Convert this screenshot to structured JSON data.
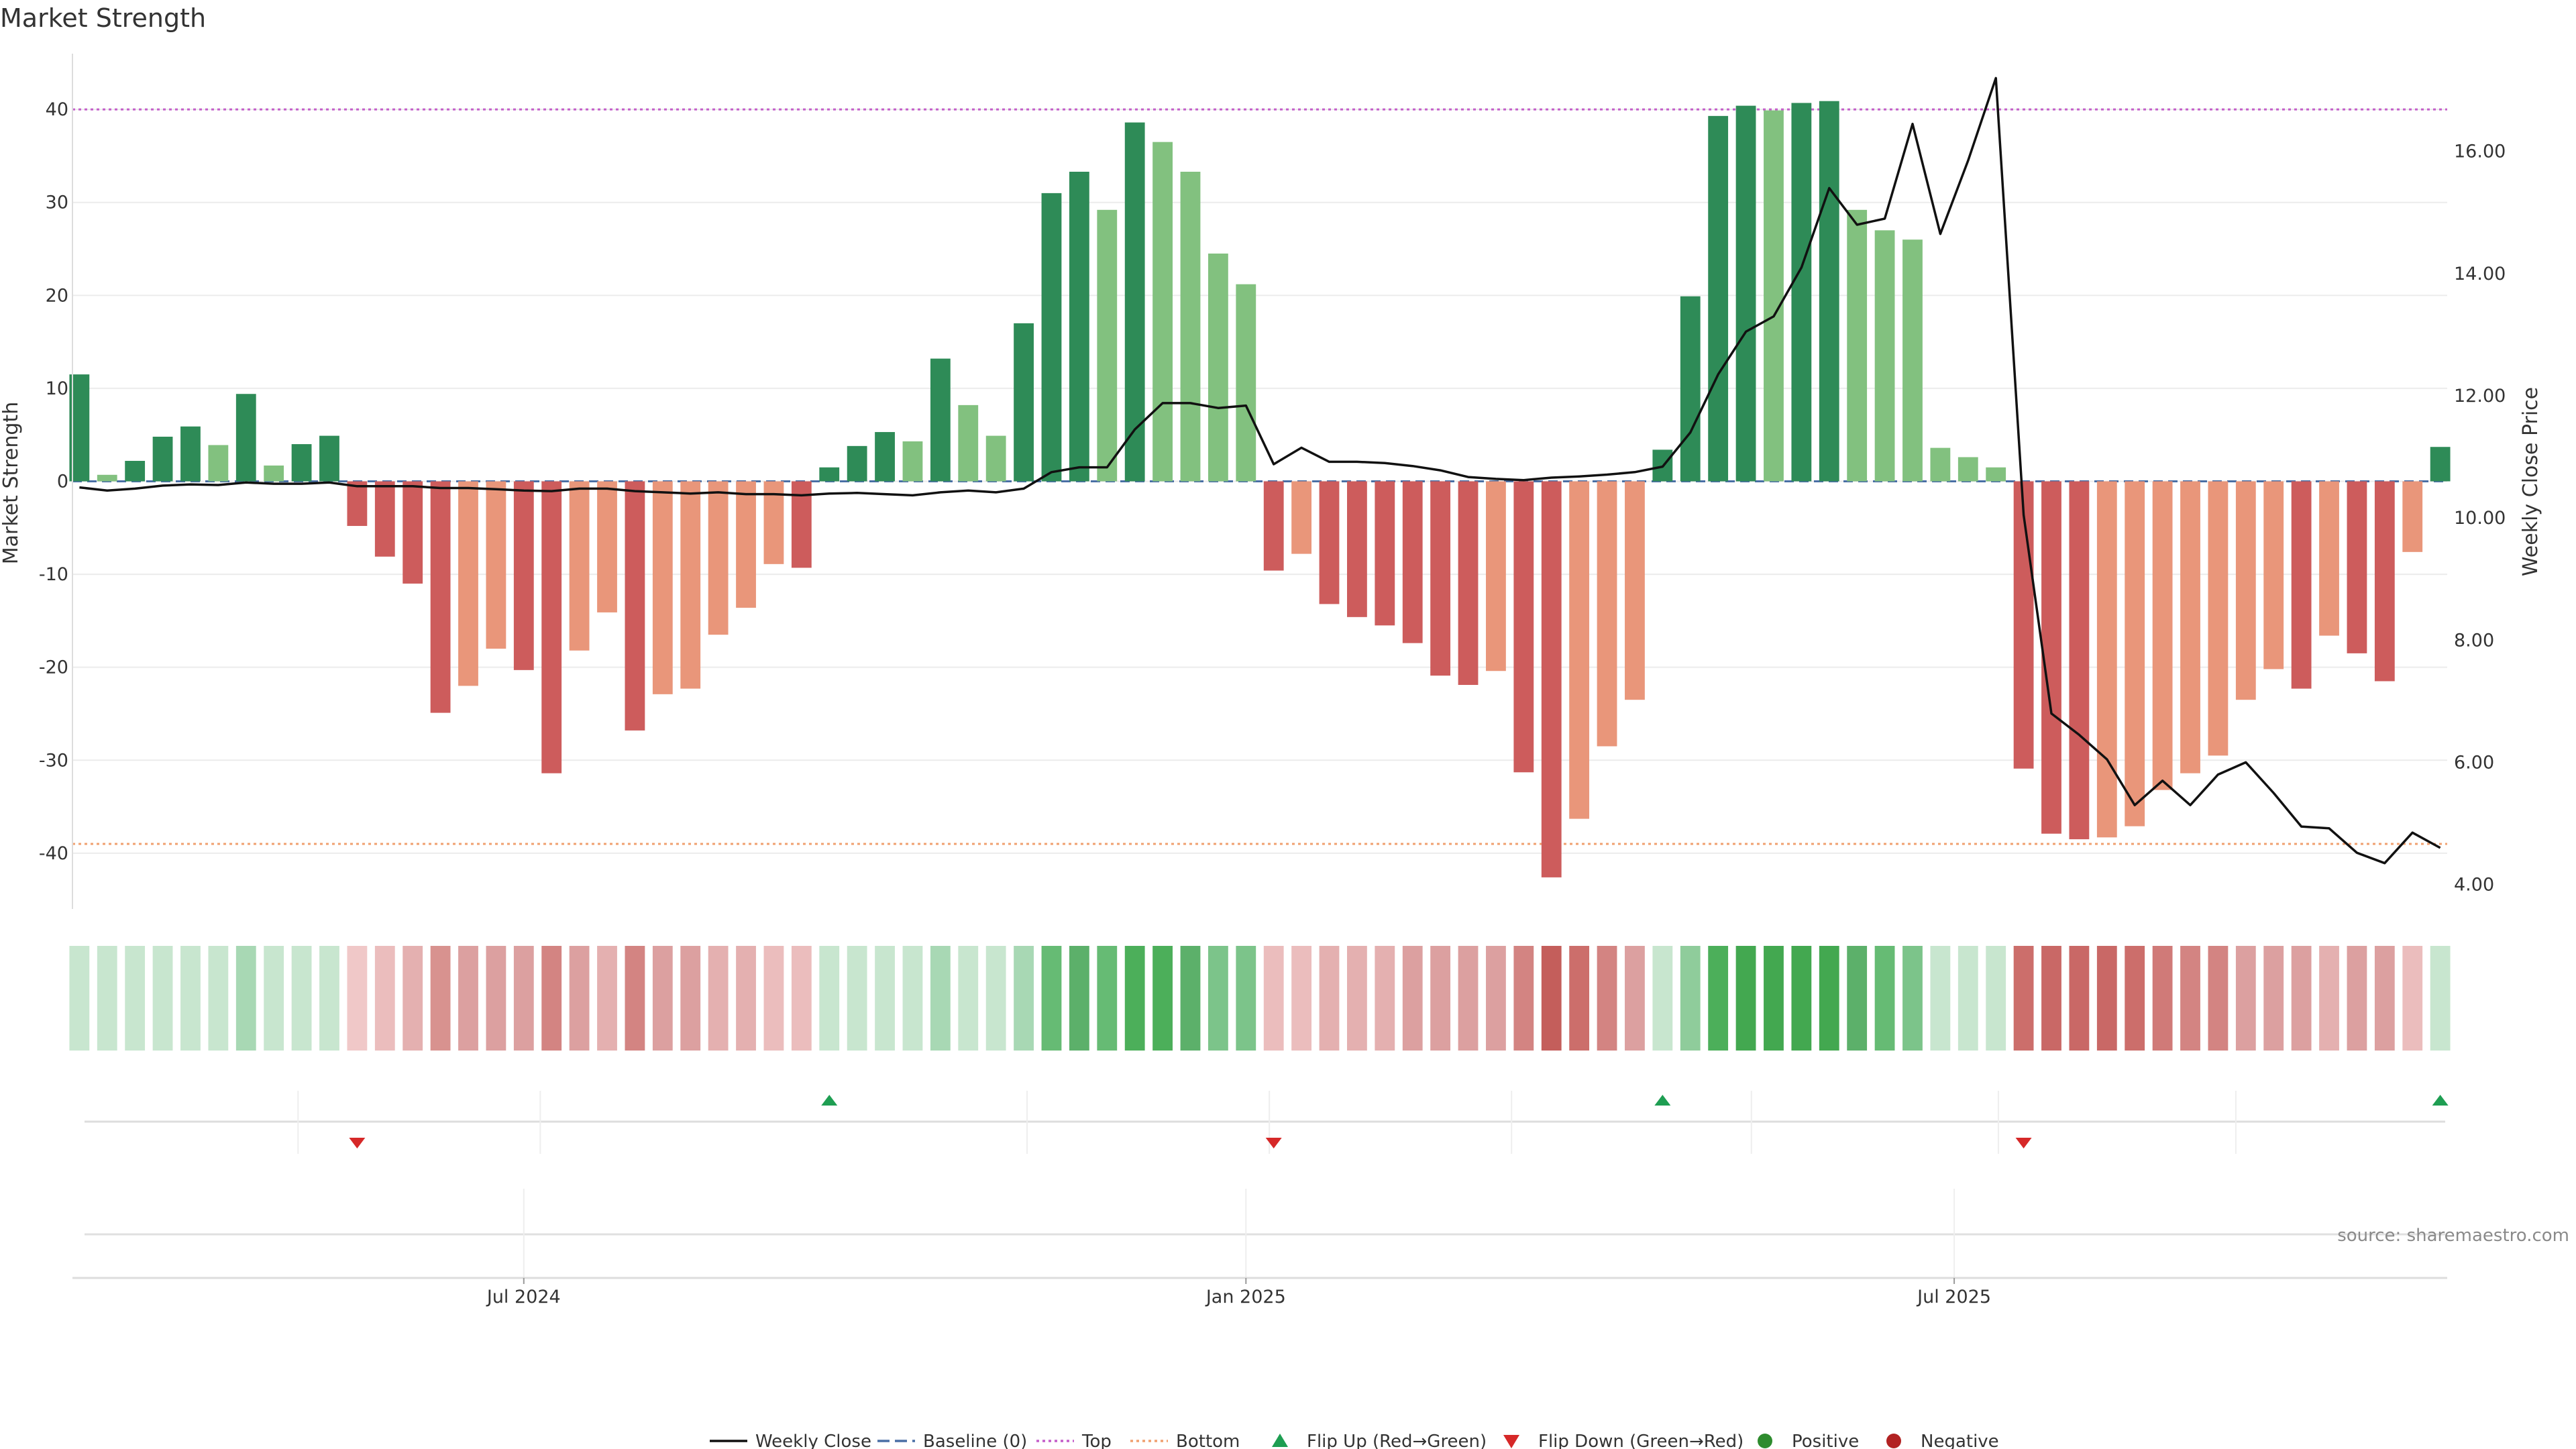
{
  "chart_data": {
    "type": "bar",
    "title": "Market Strength",
    "ylabel": "Market Strength",
    "ylabel_right": "Weekly Close Price",
    "ylim": [
      -46,
      46
    ],
    "ylim_right": [
      3.6,
      17.6
    ],
    "yticks": [
      40,
      30,
      20,
      10,
      0,
      -10,
      -20,
      -30,
      -40
    ],
    "yticks_right": [
      "16.00",
      "14.00",
      "12.00",
      "10.00",
      "8.00",
      "6.00",
      "4.00"
    ],
    "top_level": 40,
    "bottom_level": -39,
    "x_tick_labels": [
      {
        "label": "Jul 2024",
        "index": 16
      },
      {
        "label": "Jan 2025",
        "index": 42
      },
      {
        "label": "Jul 2025",
        "index": 67.5
      }
    ],
    "strength_values": [
      11.5,
      0.7,
      2.2,
      4.8,
      5.9,
      3.9,
      9.4,
      1.7,
      4.0,
      4.9,
      -4.8,
      -8.1,
      -11.0,
      -24.9,
      -22.0,
      -18.0,
      -20.3,
      -31.4,
      -18.2,
      -14.1,
      -26.8,
      -22.9,
      -22.3,
      -16.5,
      -13.6,
      -8.9,
      -9.3,
      1.5,
      3.8,
      5.3,
      4.3,
      13.2,
      8.2,
      4.9,
      17.0,
      31.0,
      33.3,
      29.2,
      38.6,
      36.5,
      33.3,
      24.5,
      21.2,
      -9.6,
      -7.8,
      -13.2,
      -14.6,
      -15.5,
      -17.4,
      -20.9,
      -21.9,
      -20.4,
      -31.3,
      -42.6,
      -36.3,
      -28.5,
      -23.5,
      3.4,
      19.9,
      39.3,
      40.4,
      39.9,
      40.7,
      40.9,
      29.2,
      27.0,
      26.0,
      3.6,
      2.6,
      1.5,
      -30.9,
      -37.9,
      -38.5,
      -38.3,
      -37.1,
      -33.2,
      -31.4,
      -29.5,
      -23.5,
      -20.2,
      -22.3,
      -16.6,
      -18.5,
      -21.5,
      -7.6,
      3.7
    ],
    "strength_shades": [
      2,
      1,
      2,
      2,
      2,
      1,
      2,
      1,
      2,
      2,
      2,
      2,
      2,
      2,
      1,
      1,
      2,
      2,
      1,
      1,
      2,
      1,
      1,
      1,
      1,
      1,
      2,
      2,
      2,
      2,
      1,
      2,
      1,
      1,
      2,
      2,
      2,
      1,
      2,
      1,
      1,
      1,
      1,
      2,
      1,
      2,
      2,
      2,
      2,
      2,
      2,
      1,
      2,
      2,
      1,
      1,
      1,
      2,
      2,
      2,
      2,
      1,
      2,
      2,
      1,
      1,
      1,
      1,
      1,
      1,
      2,
      2,
      2,
      1,
      1,
      1,
      1,
      1,
      1,
      1,
      2,
      1,
      2,
      2,
      1,
      2
    ],
    "weekly_close": [
      10.5,
      10.45,
      10.48,
      10.53,
      10.55,
      10.54,
      10.58,
      10.56,
      10.56,
      10.58,
      10.52,
      10.52,
      10.52,
      10.49,
      10.49,
      10.47,
      10.45,
      10.44,
      10.48,
      10.48,
      10.44,
      10.42,
      10.4,
      10.42,
      10.39,
      10.39,
      10.37,
      10.4,
      10.41,
      10.39,
      10.37,
      10.42,
      10.45,
      10.42,
      10.48,
      10.75,
      10.83,
      10.83,
      11.45,
      11.88,
      11.88,
      11.8,
      11.84,
      10.88,
      11.15,
      10.92,
      10.92,
      10.9,
      10.85,
      10.78,
      10.67,
      10.64,
      10.62,
      10.66,
      10.68,
      10.71,
      10.75,
      10.84,
      11.4,
      12.35,
      13.05,
      13.3,
      14.1,
      15.4,
      14.8,
      14.9,
      16.45,
      14.65,
      15.85,
      17.2,
      10.05,
      6.8,
      6.45,
      6.05,
      5.3,
      5.7,
      5.3,
      5.8,
      6.0,
      5.5,
      4.95,
      4.92,
      4.52,
      4.35,
      4.85,
      4.6
    ],
    "heat_strip_colors": [
      "#c8e6cf",
      "#c8e6cf",
      "#c8e6cf",
      "#c8e6cf",
      "#c8e6cf",
      "#c8e6cf",
      "#a8d8b4",
      "#c8e6cf",
      "#c8e6cf",
      "#c8e6cf",
      "#f0c8c8",
      "#ebbdbd",
      "#e4b0b0",
      "#d8928f",
      "#dca0a0",
      "#dca0a0",
      "#dca0a0",
      "#d38482",
      "#dca0a0",
      "#e4b0b0",
      "#d38482",
      "#dca0a0",
      "#dca0a0",
      "#e4b0b0",
      "#e4b0b0",
      "#ebbdbd",
      "#ebbdbd",
      "#c8e6cf",
      "#c8e6cf",
      "#c8e6cf",
      "#c8e6cf",
      "#a8d8b4",
      "#c8e6cf",
      "#c8e6cf",
      "#a8d8b4",
      "#66bb74",
      "#5cb06a",
      "#66bb74",
      "#4caf5a",
      "#4caf5a",
      "#5cb06a",
      "#7cc48a",
      "#7cc48a",
      "#ebbdbd",
      "#ebbdbd",
      "#e4b0b0",
      "#e4b0b0",
      "#e4b0b0",
      "#dca0a0",
      "#dca0a0",
      "#dca0a0",
      "#dca0a0",
      "#d38482",
      "#c45e5b",
      "#cc6e6b",
      "#d38482",
      "#dca0a0",
      "#c8e6cf",
      "#8fcc9b",
      "#4caf5a",
      "#43a850",
      "#43a850",
      "#43a850",
      "#43a850",
      "#5cb06a",
      "#66bb74",
      "#7cc48a",
      "#c8e6cf",
      "#c8e6cf",
      "#c8e6cf",
      "#cc6e6b",
      "#c96866",
      "#c96866",
      "#c96866",
      "#cc6e6b",
      "#d07a78",
      "#d38482",
      "#d38482",
      "#dca0a0",
      "#dca0a0",
      "#dca0a0",
      "#e4b0b0",
      "#dca0a0",
      "#dca0a0",
      "#ebbdbd",
      "#c8e6cf"
    ],
    "flip_up_indices": [
      27,
      57,
      85
    ],
    "flip_down_indices": [
      10,
      43,
      70
    ],
    "colors": {
      "positive_strong": "#2e8b57",
      "positive_light": "#82c17f",
      "negative_strong": "#cd5c5c",
      "negative_light": "#e9967a",
      "weekly_close": "#111111",
      "baseline": "#4a6fa5",
      "top": "#c45ec9",
      "bottom": "#f0a070",
      "flip_up": "#1e9e52",
      "flip_down": "#d62828",
      "positive_dot": "#2e8b2e",
      "negative_dot": "#b22222"
    },
    "legend": [
      {
        "label": "Weekly Close",
        "kind": "line",
        "color": "#111111"
      },
      {
        "label": "Baseline (0)",
        "kind": "dash",
        "color": "#4a6fa5"
      },
      {
        "label": "Top",
        "kind": "dot",
        "color": "#c45ec9"
      },
      {
        "label": "Bottom",
        "kind": "dot",
        "color": "#f0a070"
      },
      {
        "label": "Flip Up (Red→Green)",
        "kind": "tri-up",
        "color": "#1e9e52"
      },
      {
        "label": "Flip Down (Green→Red)",
        "kind": "tri-down",
        "color": "#d62828"
      },
      {
        "label": "Positive",
        "kind": "circle",
        "color": "#2e8b2e"
      },
      {
        "label": "Negative",
        "kind": "circle",
        "color": "#b22222"
      }
    ],
    "source": "source: sharemaestro.com"
  }
}
